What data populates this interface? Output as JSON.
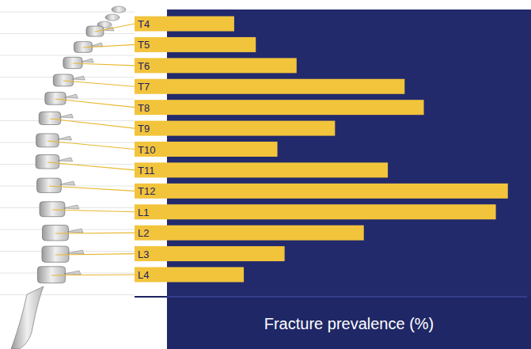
{
  "chart_data": {
    "type": "bar",
    "orientation": "horizontal",
    "x_label": "Fracture prevalence (%)",
    "categories": [
      "T4",
      "T5",
      "T6",
      "T7",
      "T8",
      "T9",
      "T10",
      "T11",
      "T12",
      "L1",
      "L2",
      "L3",
      "L4"
    ],
    "values": [
      2.8,
      3.7,
      5.4,
      9.9,
      10.7,
      7.0,
      4.6,
      9.2,
      14.2,
      13.7,
      8.2,
      4.9,
      3.2
    ],
    "color": "#f2c43c",
    "xlim": [
      0,
      15
    ],
    "tick_labels": false,
    "grid": false
  }
}
